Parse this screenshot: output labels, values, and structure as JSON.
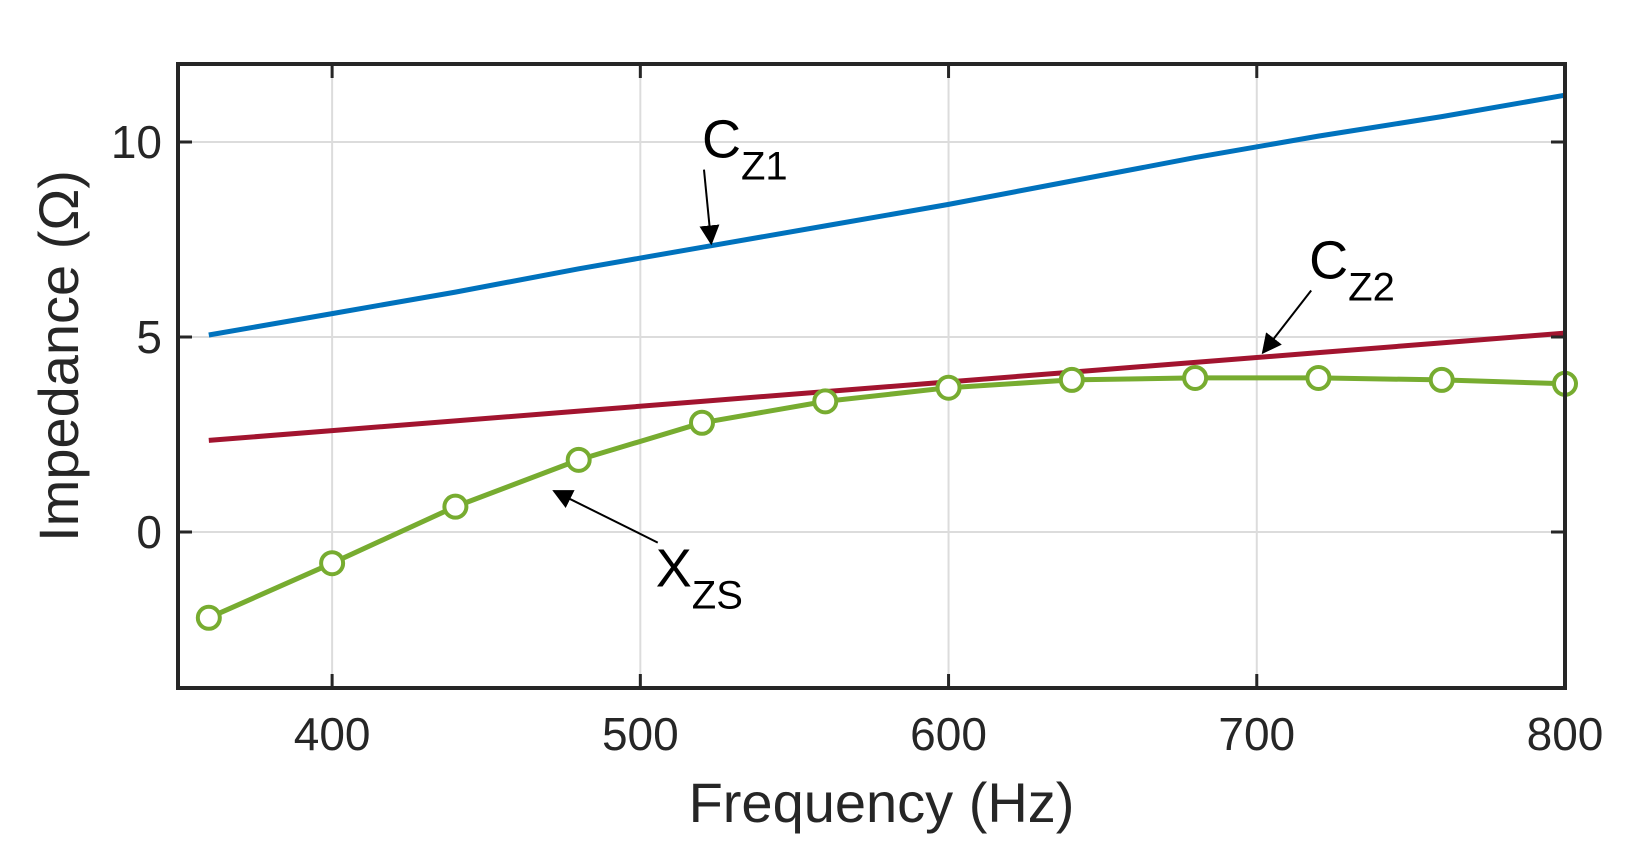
{
  "chart_data": {
    "type": "line",
    "xlabel": "Frequency (Hz)",
    "ylabel": "Impedance (Ω)",
    "xlim": [
      350,
      800
    ],
    "ylim": [
      -4,
      12
    ],
    "xticks": [
      400,
      500,
      600,
      700,
      800
    ],
    "yticks": [
      0,
      5,
      10
    ],
    "grid": true,
    "colors": {
      "cz1": "#0072BD",
      "cz2": "#A2142F",
      "xzs": "#77AC30"
    },
    "series": [
      {
        "key": "cz1",
        "x": [
          360,
          400,
          440,
          480,
          520,
          560,
          600,
          640,
          680,
          720,
          760,
          800
        ],
        "values": [
          5.05,
          5.6,
          6.15,
          6.75,
          7.3,
          7.85,
          8.4,
          9.0,
          9.6,
          10.15,
          10.65,
          11.2
        ]
      },
      {
        "key": "cz2",
        "x": [
          360,
          400,
          440,
          480,
          520,
          560,
          600,
          640,
          680,
          720,
          760,
          800
        ],
        "values": [
          2.35,
          2.6,
          2.85,
          3.1,
          3.35,
          3.6,
          3.85,
          4.1,
          4.35,
          4.6,
          4.85,
          5.1
        ]
      },
      {
        "key": "xzs",
        "marker": "circle",
        "x": [
          360,
          400,
          440,
          480,
          520,
          560,
          600,
          640,
          680,
          720,
          760,
          800
        ],
        "values": [
          -2.2,
          -0.8,
          0.65,
          1.85,
          2.8,
          3.35,
          3.7,
          3.9,
          3.95,
          3.95,
          3.9,
          3.8
        ]
      }
    ],
    "annotations": [
      {
        "key": "cz1",
        "main": "C",
        "sub": "Z1",
        "text_x": 520,
        "text_y": 9.6,
        "tip_x": 523,
        "tip_y": 7.4
      },
      {
        "key": "cz2",
        "main": "C",
        "sub": "Z2",
        "text_x": 717,
        "text_y": 6.5,
        "tip_x": 702,
        "tip_y": 4.6
      },
      {
        "key": "xzs",
        "main": "X",
        "sub": "ZS",
        "text_x": 505,
        "text_y": -1.4,
        "tip_x": 472,
        "tip_y": 1.05
      }
    ]
  }
}
